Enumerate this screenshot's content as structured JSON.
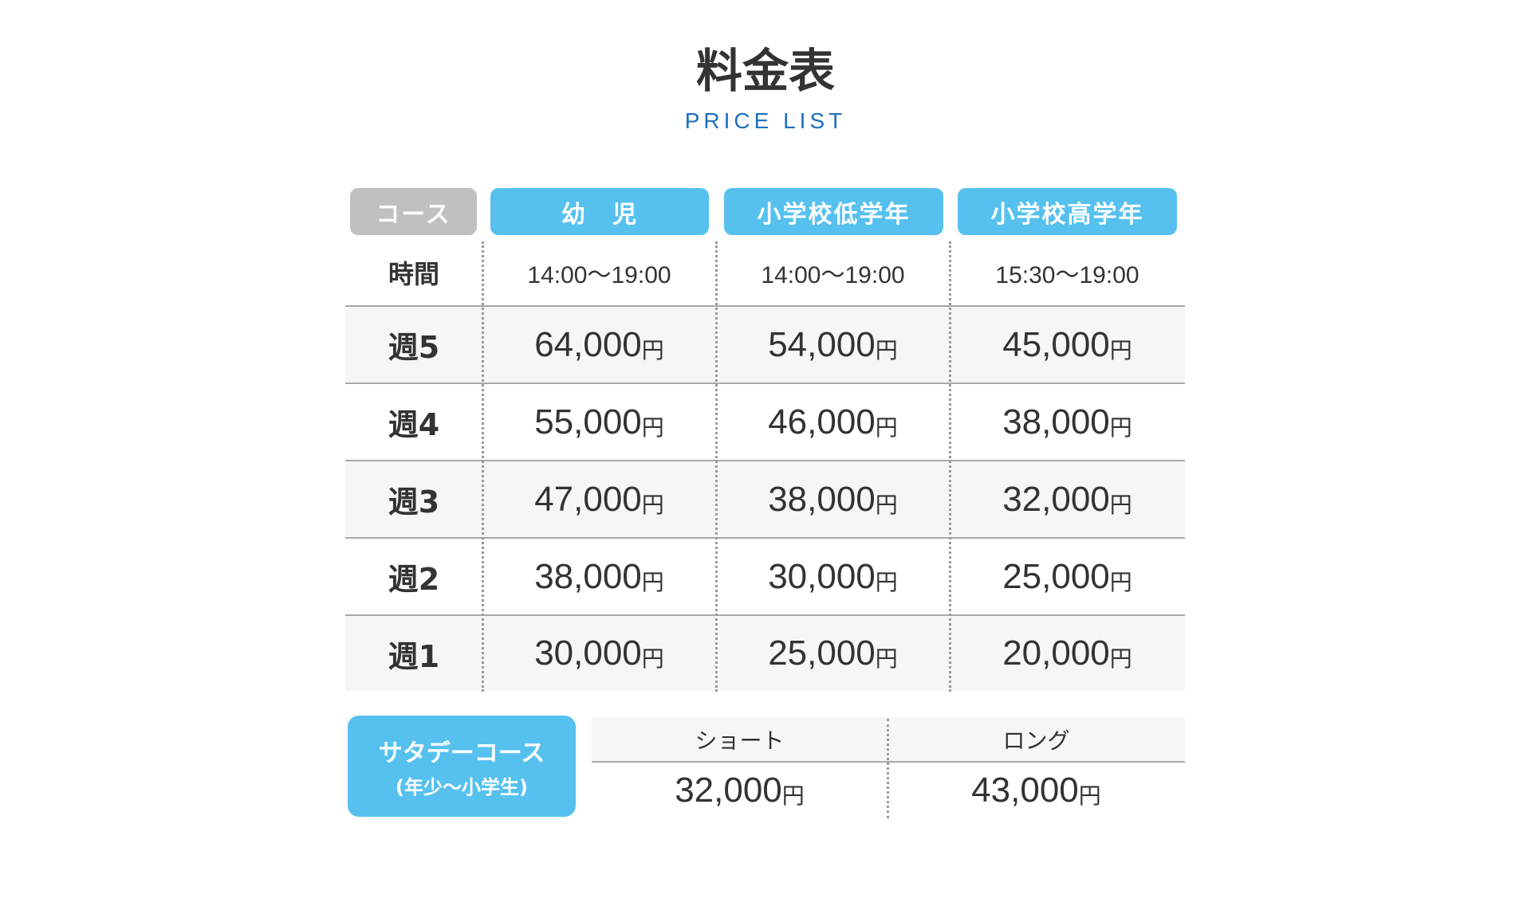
{
  "title": "料金表",
  "subtitle": "PRICE LIST",
  "colors": {
    "accent": "#56c1ef",
    "header_gray": "#bfc0bf",
    "subtitle": "#1f6fbf",
    "row_shade": "#f6f6f6"
  },
  "table": {
    "headers": [
      "コース",
      "幼　児",
      "小学校低学年",
      "小学校高学年"
    ],
    "time_row": {
      "label": "時間",
      "values": [
        "14:00〜19:00",
        "14:00〜19:00",
        "15:30〜19:00"
      ]
    },
    "rows": [
      {
        "label": "週5",
        "values": [
          "64,000",
          "54,000",
          "45,000"
        ]
      },
      {
        "label": "週4",
        "values": [
          "55,000",
          "46,000",
          "38,000"
        ]
      },
      {
        "label": "週3",
        "values": [
          "47,000",
          "38,000",
          "32,000"
        ]
      },
      {
        "label": "週2",
        "values": [
          "38,000",
          "30,000",
          "25,000"
        ]
      },
      {
        "label": "週1",
        "values": [
          "30,000",
          "25,000",
          "20,000"
        ]
      }
    ],
    "currency": "円"
  },
  "saturday": {
    "title": "サタデーコース",
    "note": "(年少〜小学生)",
    "headers": [
      "ショート",
      "ロング"
    ],
    "values": [
      "32,000",
      "43,000"
    ]
  }
}
